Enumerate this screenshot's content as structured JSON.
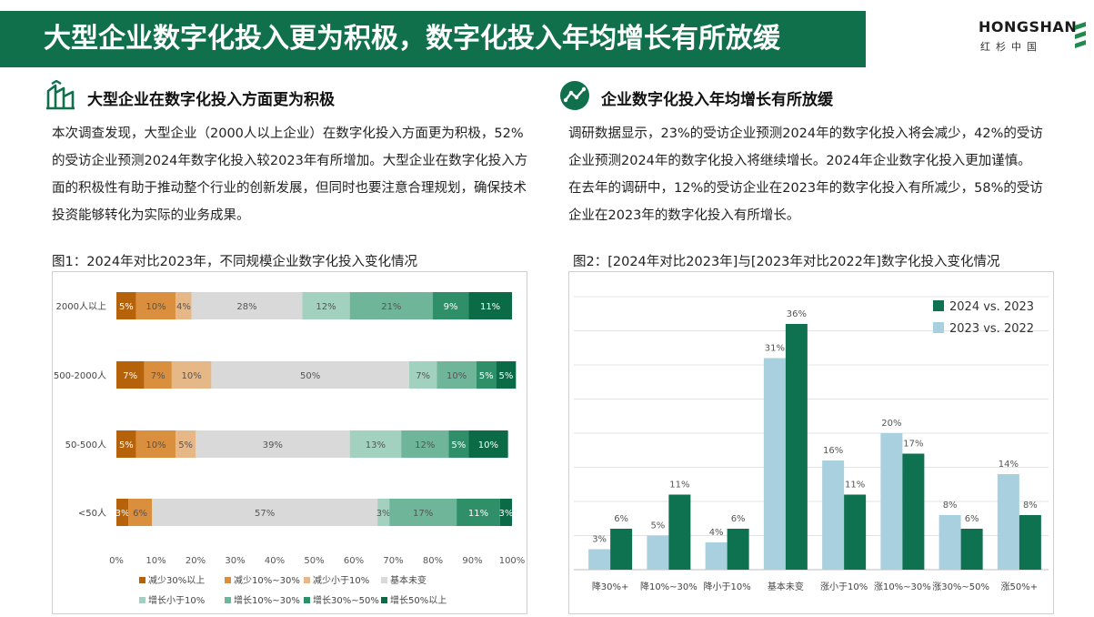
{
  "header": {
    "title": "大型企业数字化投入更为积极，数字化投入年均增长有所放缓",
    "logo_main": "HONGSHAN",
    "logo_sub": "红杉中国"
  },
  "left": {
    "heading": "大型企业在数字化投入方面更为积极",
    "paragraph": "本次调查发现，大型企业（2000人以上企业）在数字化投入方面更为积极，52%的受访企业预测2024年数字化投入较2023年有所增加。大型企业在数字化投入方面的积极性有助于推动整个行业的创新发展，但同时也要注意合理规划，确保技术投资能够转化为实际的业务成果。",
    "figure_caption": "图1：2024年对比2023年，不同规模企业数字化投入变化情况"
  },
  "right": {
    "heading": "企业数字化投入年均增长有所放缓",
    "paragraph": "调研数据显示，23%的受访企业预测2024年的数字化投入将会减少，42%的受访企业预测2024年的数字化投入将继续增长。2024年企业数字化投入更加谨慎。在去年的调研中，12%的受访企业在2023年的数字化投入有所减少，58%的受访企业在2023年的数字化投入有所增长。",
    "figure_caption": "图2：[2024年对比2023年]与[2023年对比2022年]数字化投入变化情况"
  },
  "chart_data": [
    {
      "type": "bar",
      "orientation": "horizontal",
      "stacked": true,
      "categories": [
        "2000人以上",
        "500-2000人",
        "50-500人",
        "<50人"
      ],
      "xlim": [
        0,
        100
      ],
      "x_ticks": [
        "0%",
        "10%",
        "20%",
        "30%",
        "40%",
        "50%",
        "60%",
        "70%",
        "80%",
        "90%",
        "100%"
      ],
      "legend_position": "bottom",
      "series": [
        {
          "name": "减少30%以上",
          "color": "#b5620b",
          "values": [
            5,
            7,
            5,
            3
          ],
          "labels": [
            "5%",
            "7%",
            "5%",
            "3%"
          ]
        },
        {
          "name": "减少10%~30%",
          "color": "#d98f3e",
          "values": [
            10,
            7,
            10,
            6
          ],
          "labels": [
            "10%",
            "7%",
            "10%",
            "6%"
          ]
        },
        {
          "name": "减少小于10%",
          "color": "#e6b888",
          "values": [
            4,
            10,
            5,
            0
          ],
          "labels": [
            "4%",
            "10%",
            "5%",
            ""
          ]
        },
        {
          "name": "基本未变",
          "color": "#d9d9d9",
          "values": [
            28,
            50,
            39,
            57
          ],
          "labels": [
            "28%",
            "50%",
            "39%",
            "57%"
          ]
        },
        {
          "name": "增长小于10%",
          "color": "#a3d1bf",
          "values": [
            12,
            7,
            13,
            3
          ],
          "labels": [
            "12%",
            "7%",
            "13%",
            "3%"
          ]
        },
        {
          "name": "增长10%~30%",
          "color": "#6fb59a",
          "values": [
            21,
            10,
            12,
            17
          ],
          "labels": [
            "21%",
            "10%",
            "12%",
            "17%"
          ]
        },
        {
          "name": "增长30%~50%",
          "color": "#2f8f68",
          "values": [
            9,
            5,
            5,
            11
          ],
          "labels": [
            "9%",
            "5%",
            "5%",
            "11%"
          ]
        },
        {
          "name": "增长50%以上",
          "color": "#0b6b47",
          "values": [
            11,
            5,
            10,
            3
          ],
          "labels": [
            "11%",
            "5%",
            "10%",
            "3%"
          ]
        }
      ]
    },
    {
      "type": "bar",
      "orientation": "vertical",
      "categories": [
        "降30%+",
        "降10%~30%",
        "降小于10%",
        "基本未变",
        "涨小于10%",
        "涨10%~30%",
        "涨30%~50%",
        "涨50%+"
      ],
      "ylim": [
        0,
        40
      ],
      "grid": true,
      "legend_position": "top-right",
      "series": [
        {
          "name": "2023 vs. 2022",
          "color": "#a9d0df",
          "values": [
            3,
            5,
            4,
            31,
            16,
            20,
            8,
            14
          ],
          "labels": [
            "3%",
            "5%",
            "4%",
            "31%",
            "16%",
            "20%",
            "8%",
            "14%"
          ]
        },
        {
          "name": "2024 vs. 2023",
          "color": "#0e7150",
          "values": [
            6,
            11,
            6,
            36,
            11,
            17,
            6,
            8
          ],
          "labels": [
            "6%",
            "11%",
            "6%",
            "36%",
            "11%",
            "17%",
            "6%",
            "8%"
          ]
        }
      ],
      "legend_order": [
        "2024 vs. 2023",
        "2023 vs. 2022"
      ]
    }
  ]
}
